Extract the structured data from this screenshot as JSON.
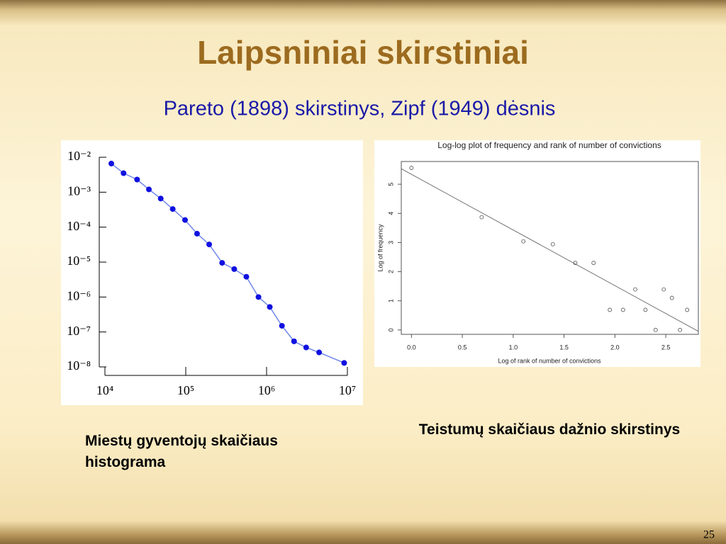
{
  "slide": {
    "title": "Laipsniniai skirstiniai",
    "subtitle": "Pareto (1898) skirstinys, Zipf (1949) dėsnis",
    "page_number": "25"
  },
  "chart_data": [
    {
      "type": "line",
      "log_x": true,
      "log_y": true,
      "caption": "Miestų gyventojų skaičiaus histograma",
      "x": [
        12000,
        17000,
        25000,
        35000,
        49000,
        69000,
        98000,
        138000,
        195000,
        282000,
        398000,
        562000,
        794000,
        1096000,
        1549000,
        2188000,
        3090000,
        4467000,
        9120000
      ],
      "values": [
        0.0066,
        0.0035,
        0.0023,
        0.0012,
        0.00066,
        0.00033,
        0.00016,
        6.5e-05,
        3.2e-05,
        9.5e-06,
        6.3e-06,
        3.8e-06,
        1e-06,
        5.2e-07,
        1.5e-07,
        5.4e-08,
        3.6e-08,
        2.6e-08,
        1.3e-08
      ],
      "color": "#1010e0",
      "line_color": "#6f86e8",
      "xlim": [
        10000,
        10000000
      ],
      "ylim": [
        1e-08,
        0.01
      ],
      "xticks": [
        {
          "value": 10000,
          "label": "10⁴"
        },
        {
          "value": 100000,
          "label": "10⁵"
        },
        {
          "value": 1000000,
          "label": "10⁶"
        },
        {
          "value": 10000000,
          "label": "10⁷"
        }
      ],
      "yticks": [
        {
          "value": 1e-08,
          "label": "10⁻⁸"
        },
        {
          "value": 1e-07,
          "label": "10⁻⁷"
        },
        {
          "value": 1e-06,
          "label": "10⁻⁶"
        },
        {
          "value": 1e-05,
          "label": "10⁻⁵"
        },
        {
          "value": 0.0001,
          "label": "10⁻⁴"
        },
        {
          "value": 0.001,
          "label": "10⁻³"
        },
        {
          "value": 0.01,
          "label": "10⁻²"
        }
      ]
    },
    {
      "type": "scatter",
      "title": "Log-log plot of frequency and rank of number of convictions",
      "xlabel": "Log of rank of number of convictions",
      "ylabel": "Log of frequency",
      "caption": "Teistumų skaičiaus dažnio skirstinys",
      "x": [
        0,
        0.69,
        1.1,
        1.39,
        1.61,
        1.79,
        1.95,
        2.08,
        2.2,
        2.3,
        2.4,
        2.48,
        2.56,
        2.64,
        2.71
      ],
      "values": [
        5.56,
        3.87,
        3.04,
        2.94,
        2.3,
        2.3,
        0.69,
        0.69,
        1.39,
        0.69,
        0,
        1.39,
        1.1,
        0,
        0.69
      ],
      "color": "#555555",
      "fit": {
        "intercept": 5.34,
        "slope": -1.91,
        "color": "#555555"
      },
      "xlim": [
        -0.1,
        2.82
      ],
      "ylim": [
        -0.15,
        5.78
      ],
      "xticks": [
        {
          "value": 0,
          "label": "0.0"
        },
        0.5,
        {
          "value": 1,
          "label": "1.0"
        },
        1.5,
        {
          "value": 2,
          "label": "2.0"
        },
        2.5
      ],
      "yticks": [
        0,
        1,
        2,
        3,
        4,
        5
      ]
    }
  ]
}
